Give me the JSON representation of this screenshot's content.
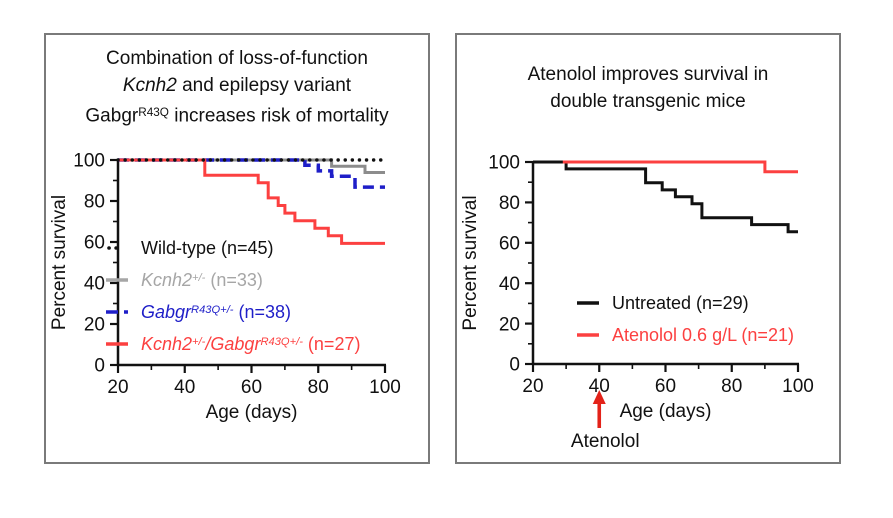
{
  "page": {
    "background": "#ffffff",
    "panel_border_color": "#7a7a7a"
  },
  "chart_data": [
    {
      "type": "line",
      "subtype": "kaplan-meier-survival",
      "title_parts": [
        {
          "t": "Combination of loss-of-function"
        },
        {
          "br": true
        },
        {
          "t": "Kcnh2",
          "i": true
        },
        {
          "t": " and epilepsy variant"
        },
        {
          "br": true
        },
        {
          "t": "Gabgr"
        },
        {
          "t": "R43Q",
          "sup": true
        },
        {
          "t": " increases risk of mortality"
        }
      ],
      "xlabel": "Age (days)",
      "ylabel": "Percent survival",
      "xlim": [
        20,
        100
      ],
      "ylim": [
        0,
        100
      ],
      "xticks": [
        20,
        40,
        60,
        80,
        100
      ],
      "yticks": [
        0,
        20,
        40,
        60,
        80,
        100
      ],
      "xminor": [
        30,
        50,
        70,
        90
      ],
      "yminor": [
        10,
        30,
        50,
        70,
        90
      ],
      "grid": false,
      "series": [
        {
          "name": "Kcnh2+/- (n=33)",
          "color": "#8c8c8c",
          "dash": "solid",
          "width": 3,
          "points": [
            [
              20,
              100
            ],
            [
              84,
              100
            ],
            [
              84,
              97
            ],
            [
              94,
              97
            ],
            [
              94,
              93.9
            ],
            [
              100,
              93.9
            ]
          ]
        },
        {
          "name": "GabgrR43Q+/- (n=38)",
          "color": "#1e1ec8",
          "dash": "dashed",
          "width": 3.5,
          "points": [
            [
              20,
              100
            ],
            [
              76,
              100
            ],
            [
              76,
              97.4
            ],
            [
              80,
              97.4
            ],
            [
              80,
              94.7
            ],
            [
              84,
              94.7
            ],
            [
              84,
              92.1
            ],
            [
              91,
              92.1
            ],
            [
              91,
              86.8
            ],
            [
              100,
              86.8
            ]
          ]
        },
        {
          "name": "Kcnh2+/-/GabgrR43Q+/- (n=27)",
          "color": "#fc4040",
          "dash": "solid",
          "width": 3,
          "points": [
            [
              20,
              100
            ],
            [
              46,
              100
            ],
            [
              46,
              92.6
            ],
            [
              62,
              92.6
            ],
            [
              62,
              88.9
            ],
            [
              65,
              88.9
            ],
            [
              65,
              81.5
            ],
            [
              68,
              81.5
            ],
            [
              68,
              77.8
            ],
            [
              70,
              77.8
            ],
            [
              70,
              74.1
            ],
            [
              73,
              74.1
            ],
            [
              73,
              70.4
            ],
            [
              79,
              70.4
            ],
            [
              79,
              66.7
            ],
            [
              83,
              66.7
            ],
            [
              83,
              63
            ],
            [
              87,
              63
            ],
            [
              87,
              59.3
            ],
            [
              100,
              59.3
            ]
          ]
        },
        {
          "name": "Wild-type (n=45)",
          "color": "#111111",
          "dash": "dotted",
          "width": 3.4,
          "points": [
            [
              20,
              100
            ],
            [
              100,
              100
            ]
          ]
        }
      ],
      "legend": {
        "position": "inside-lower-left",
        "items": [
          {
            "color": "#111111",
            "dash": "dotted",
            "parts": [
              {
                "t": "Wild-type (n=45)"
              }
            ]
          },
          {
            "color": "#a6a6a6",
            "dash": "solid",
            "parts": [
              {
                "t": "Kcnh2",
                "i": true
              },
              {
                "t": "+/-",
                "sup": true,
                "i": true
              },
              {
                "t": " (n=33)"
              }
            ]
          },
          {
            "color": "#1e1ec8",
            "dash": "dashed",
            "parts": [
              {
                "t": "Gabgr",
                "i": true
              },
              {
                "t": "R43Q+/-",
                "sup": true,
                "i": true
              },
              {
                "t": " (n=38)"
              }
            ]
          },
          {
            "color": "#fc4040",
            "dash": "solid",
            "parts": [
              {
                "t": "Kcnh2",
                "i": true
              },
              {
                "t": "+/-",
                "sup": true,
                "i": true
              },
              {
                "t": "/",
                "i": true
              },
              {
                "t": "Gabgr",
                "i": true
              },
              {
                "t": "R43Q+/-",
                "sup": true,
                "i": true
              },
              {
                "t": " (n=27)"
              }
            ]
          }
        ]
      }
    },
    {
      "type": "line",
      "subtype": "kaplan-meier-survival",
      "title_parts": [
        {
          "t": "Atenolol improves survival in"
        },
        {
          "br": true
        },
        {
          "t": "double transgenic mice"
        }
      ],
      "xlabel": "Age (days)",
      "ylabel": "Percent survival",
      "xlim": [
        20,
        100
      ],
      "ylim": [
        0,
        100
      ],
      "xticks": [
        20,
        40,
        60,
        80,
        100
      ],
      "yticks": [
        0,
        20,
        40,
        60,
        80,
        100
      ],
      "xminor": [
        30,
        50,
        70,
        90
      ],
      "yminor": [
        10,
        30,
        50,
        70,
        90
      ],
      "grid": false,
      "series": [
        {
          "name": "Untreated (n=29)",
          "color": "#111111",
          "dash": "solid",
          "width": 3,
          "points": [
            [
              20,
              100
            ],
            [
              30,
              100
            ],
            [
              30,
              96.6
            ],
            [
              54,
              96.6
            ],
            [
              54,
              89.7
            ],
            [
              59,
              89.7
            ],
            [
              59,
              86.2
            ],
            [
              63,
              86.2
            ],
            [
              63,
              82.8
            ],
            [
              68,
              82.8
            ],
            [
              68,
              79.3
            ],
            [
              71,
              79.3
            ],
            [
              71,
              72.4
            ],
            [
              86,
              72.4
            ],
            [
              86,
              69
            ],
            [
              97,
              69
            ],
            [
              97,
              65.5
            ],
            [
              100,
              65.5
            ]
          ]
        },
        {
          "name": "Atenolol 0.6 g/L (n=21)",
          "color": "#fc4040",
          "dash": "solid",
          "width": 3,
          "points": [
            [
              29,
              100
            ],
            [
              90,
              100
            ],
            [
              90,
              95.2
            ],
            [
              100,
              95.2
            ]
          ]
        }
      ],
      "legend": {
        "position": "inside-lower-left",
        "items": [
          {
            "color": "#111111",
            "dash": "solid",
            "parts": [
              {
                "t": "Untreated (n=29)"
              }
            ]
          },
          {
            "color": "#fc4040",
            "dash": "solid",
            "parts": [
              {
                "t": "Atenolol 0.6 g/L (n=21)"
              }
            ]
          }
        ]
      },
      "annotation": {
        "type": "up-arrow",
        "x_day": 40,
        "color": "#e32219",
        "label": "Atenolol"
      }
    }
  ]
}
